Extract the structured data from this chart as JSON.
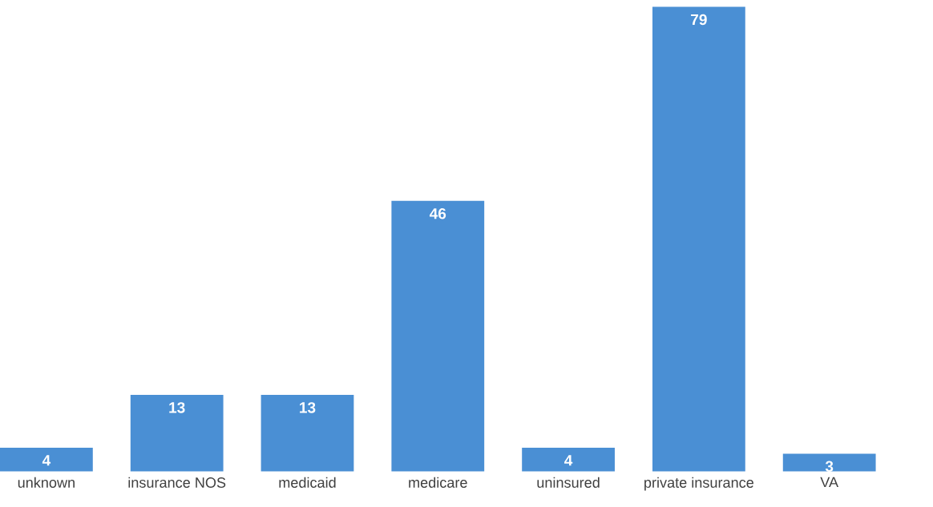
{
  "chart_data": {
    "type": "bar",
    "categories": [
      "unknown",
      "insurance NOS",
      "medicaid",
      "medicare",
      "uninsured",
      "private insurance",
      "VA"
    ],
    "values": [
      4,
      13,
      13,
      46,
      4,
      79,
      3
    ],
    "color": "#4a8fd4",
    "data_labels": true
  }
}
